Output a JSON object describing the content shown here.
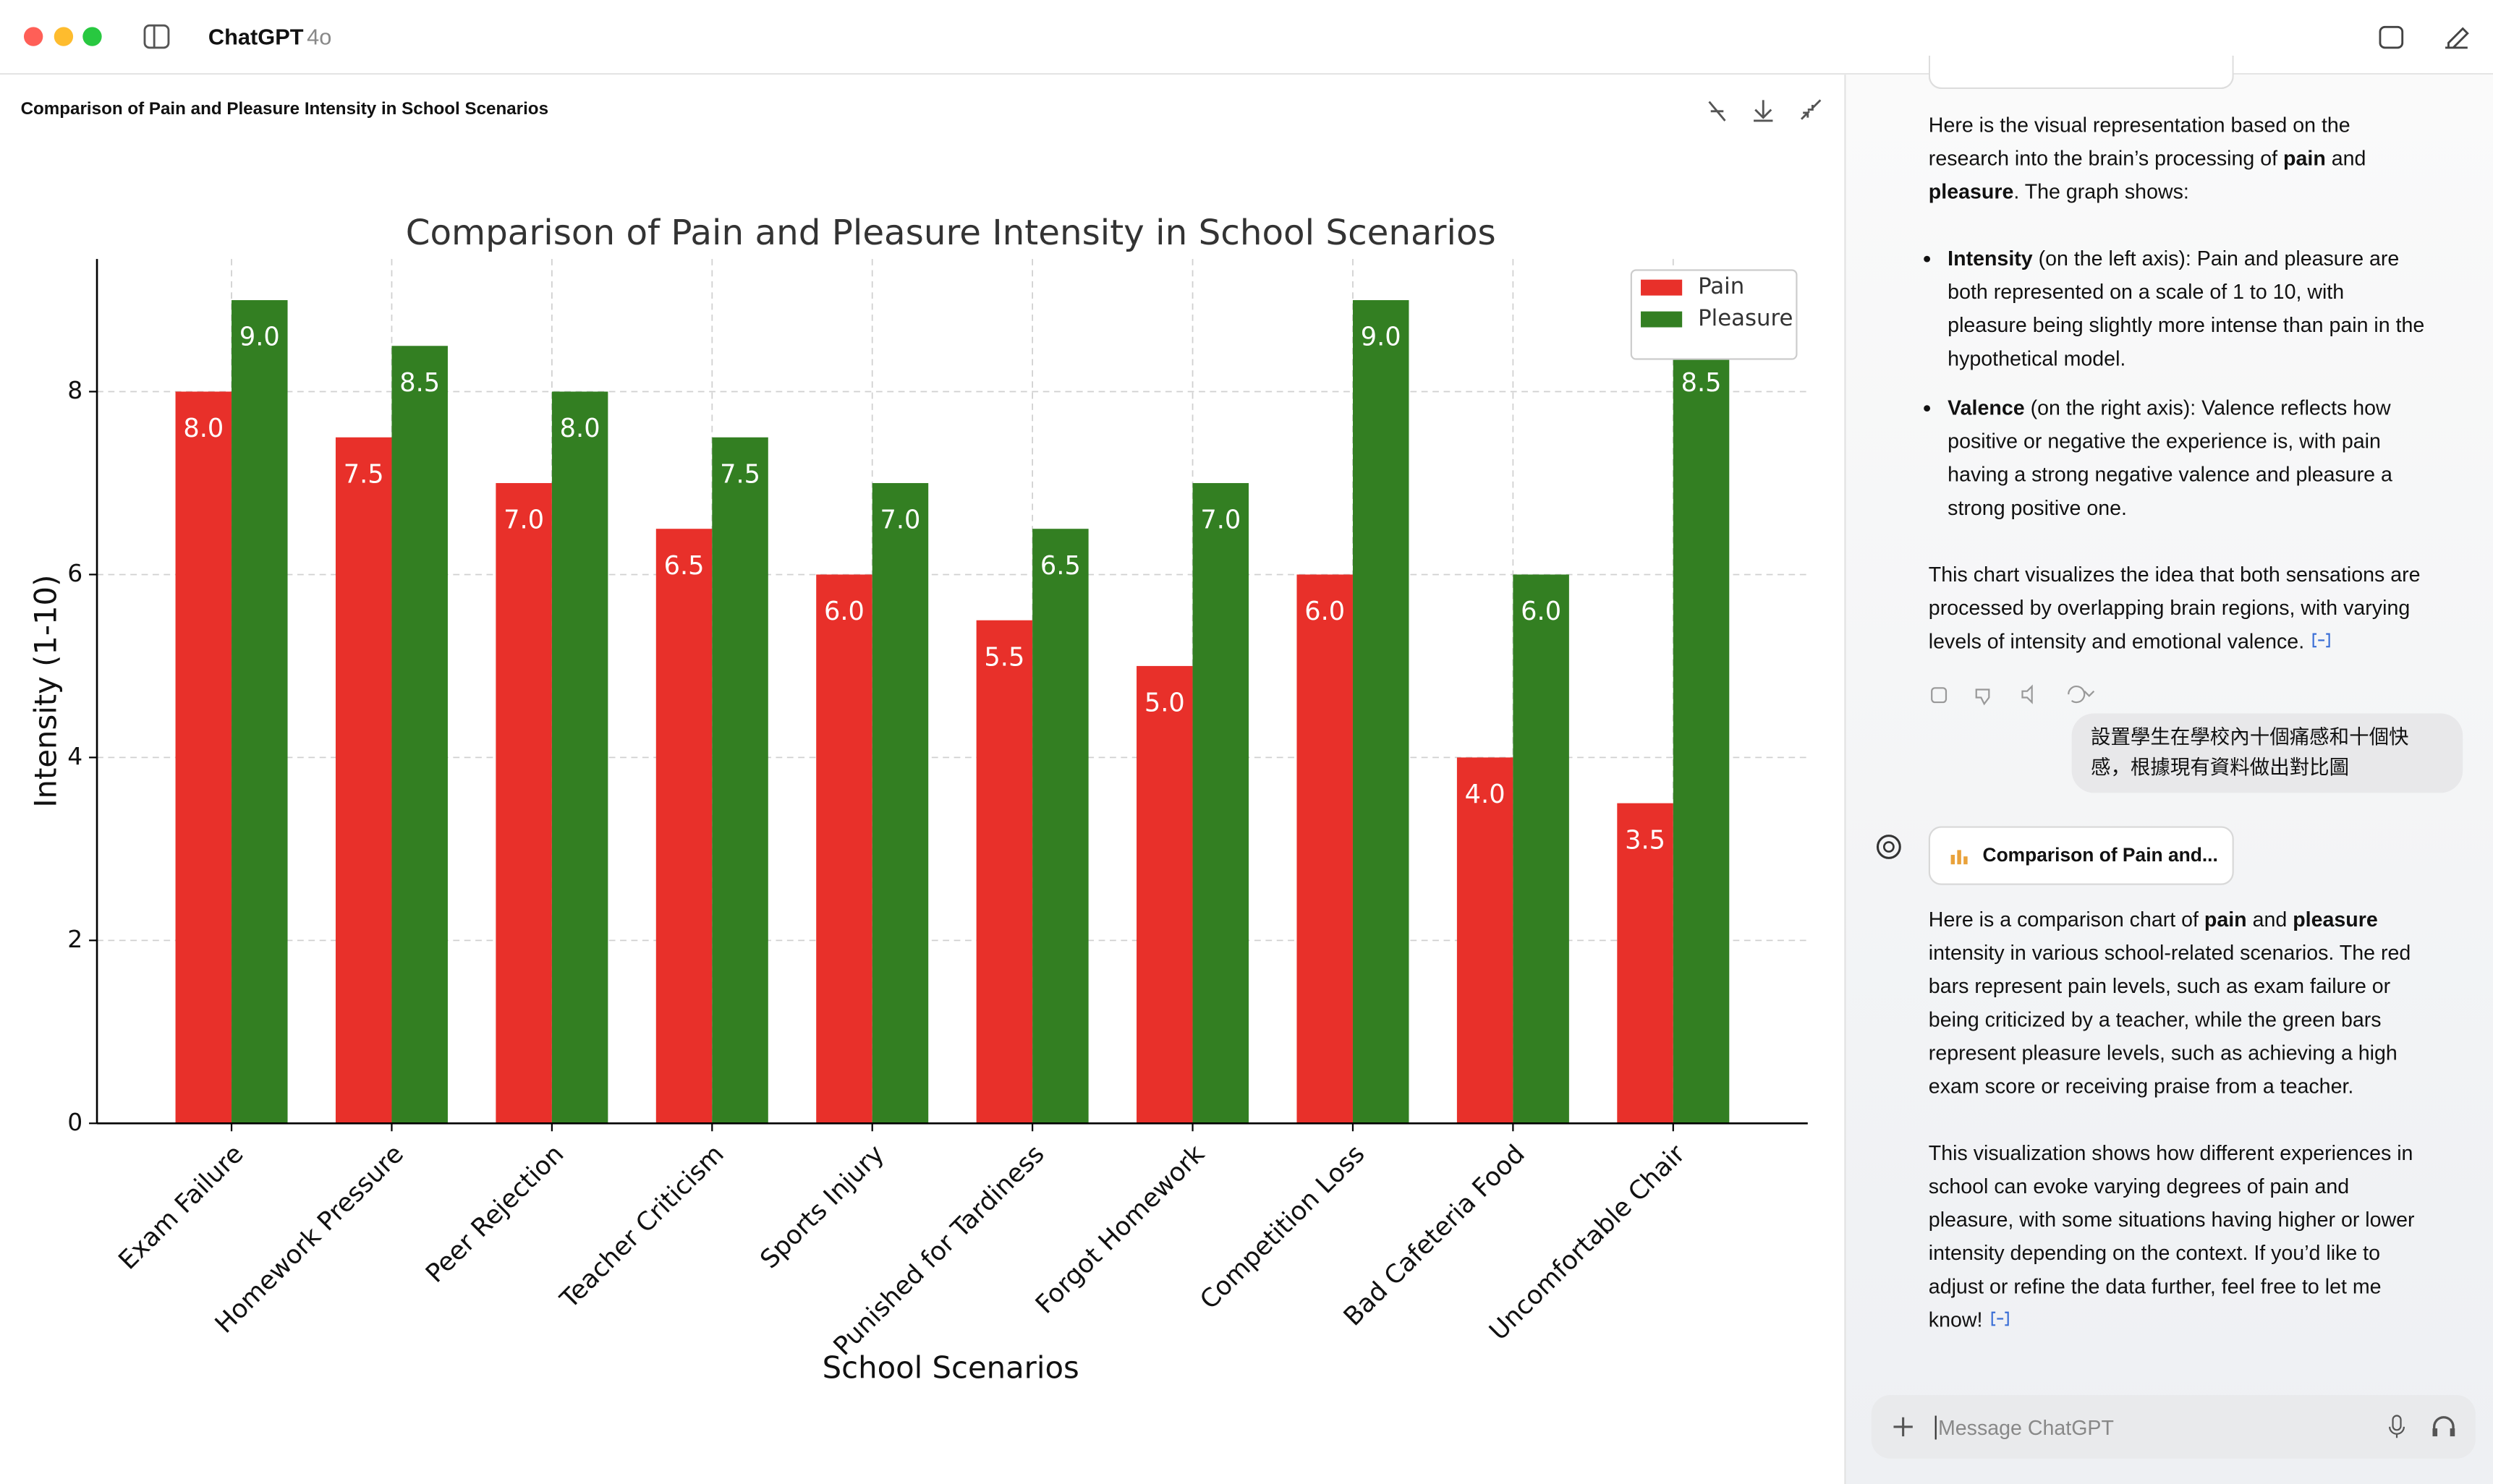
{
  "window": {
    "app": "ChatGPT",
    "model": "4o"
  },
  "canvas": {
    "title": "Comparison of Pain and Pleasure Intensity in School Scenarios"
  },
  "chart_data": {
    "type": "bar",
    "title": "Comparison of Pain and Pleasure Intensity in School Scenarios",
    "x_label": "School Scenarios",
    "y_label": "Intensity (1-10)",
    "categories": [
      "Exam Failure",
      "Homework Pressure",
      "Peer Rejection",
      "Teacher Criticism",
      "Sports Injury",
      "Punished for Tardiness",
      "Forgot Homework",
      "Competition Loss",
      "Bad Cafeteria Food",
      "Uncomfortable Chair"
    ],
    "series": [
      {
        "name": "Pain",
        "color": "#e8302a",
        "values": [
          8,
          7.5,
          7,
          6.5,
          6,
          5.5,
          5,
          6,
          4,
          3.5
        ],
        "value_labels": [
          "8.0",
          "7.5",
          "7.0",
          "6.5",
          "6.0",
          "5.5",
          "5.0",
          "6.0",
          "4.0",
          "3.5"
        ]
      },
      {
        "name": "Pleasure",
        "color": "#337f22",
        "values": [
          9,
          8.5,
          8,
          7.5,
          7,
          6.5,
          7,
          9,
          6,
          8.5
        ],
        "value_labels": [
          "9.0",
          "8.5",
          "8.0",
          "7.5",
          "7.0",
          "6.5",
          "7.0",
          "9.0",
          "6.0",
          "8.5"
        ]
      }
    ],
    "ylim": [
      0,
      9.45
    ],
    "yticks": [
      0,
      2,
      4,
      6,
      8
    ],
    "grid": true,
    "legend": "upper right"
  },
  "chat": {
    "reply1": [
      [
        "Here is the visual representation based on the research into the brain’s processing of ",
        {
          "text": "pain",
          "bold": true
        },
        " and ",
        {
          "text": "pleasure",
          "bold": true
        },
        ". The graph shows:"
      ]
    ],
    "bullets1": [
      [
        {
          "text": "Intensity",
          "bold": true
        },
        " (on the left axis): Pain and pleasure are both represented on a scale of 1 to 10, with pleasure being slightly more intense than pain in the hypothetical model."
      ],
      [
        {
          "text": "Valence",
          "bold": true
        },
        " (on the right axis): Valence reflects how positive or negative the experience is, with pain having a strong negative valence and pleasure a strong positive one."
      ]
    ],
    "reply1_end": [
      "This chart visualizes the idea that both sensations are processed by overlapping brain regions, with varying levels of intensity and emotional valence."
    ],
    "user": "設置學生在學校內十個痛感和十個快感，根據現有資料做出對比圖",
    "card": "Comparison of Pain and...",
    "reply2": [
      [
        "Here is a comparison chart of ",
        {
          "text": "pain",
          "bold": true
        },
        " and ",
        {
          "text": "pleasure",
          "bold": true
        },
        " intensity in various school-related scenarios. The red bars represent pain levels, such as exam failure or being criticized by a teacher, while the green bars represent pleasure levels, such as achieving a high exam score or receiving praise from a teacher."
      ],
      [
        "This visualization shows how different experiences in school can evoke varying degrees of pain and pleasure, with some situations having higher or lower intensity depending on the context. If you’d like to adjust or refine the data further, feel free to let me know!"
      ]
    ],
    "placeholder": "Message ChatGPT"
  }
}
